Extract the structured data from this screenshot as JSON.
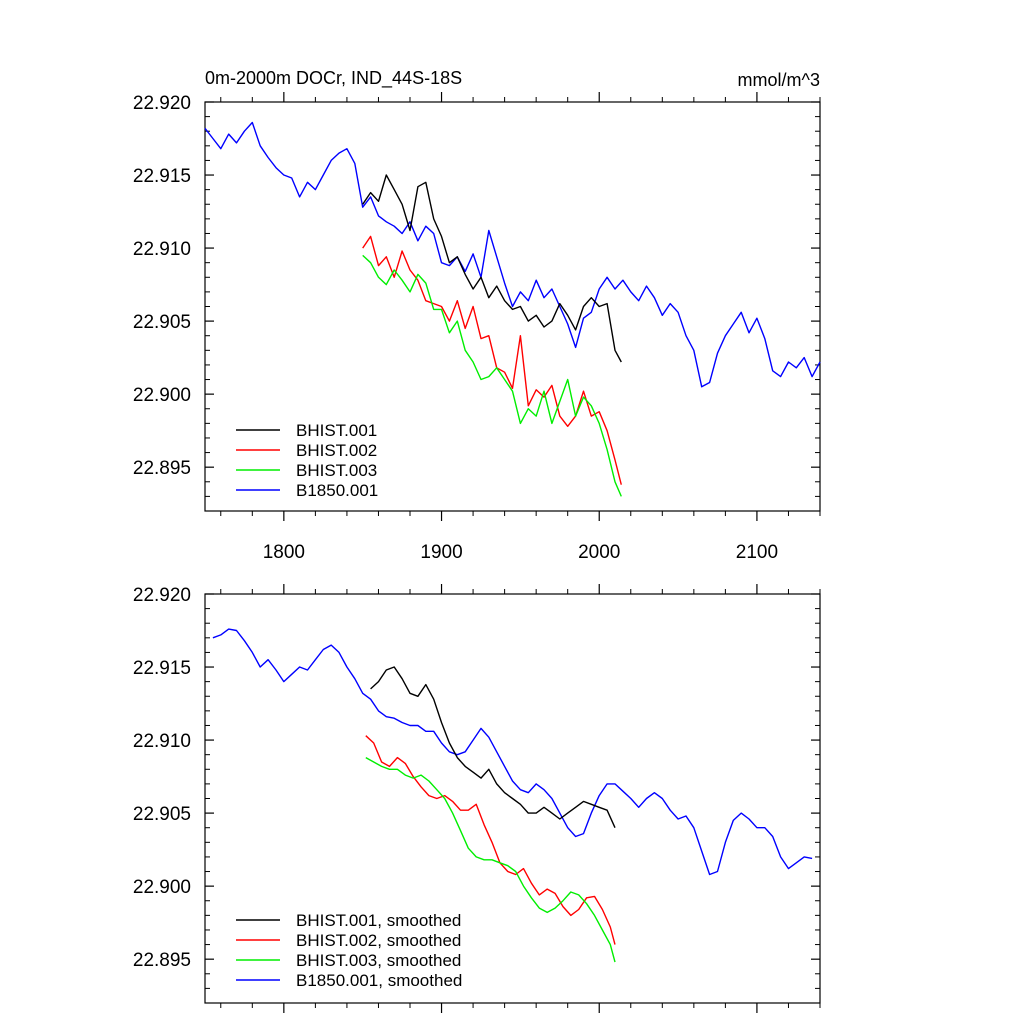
{
  "chart_data": [
    {
      "type": "line",
      "title": "0m-2000m DOCr, IND_44S-18S",
      "units": "mmol/m^3",
      "xlim": [
        1750,
        2140
      ],
      "ylim": [
        22.892,
        22.92
      ],
      "xticks": [
        1800,
        1900,
        2000,
        2100
      ],
      "xtick_labels": [
        "1800",
        "1900",
        "2000",
        "2100"
      ],
      "yticks": [
        22.895,
        22.9,
        22.905,
        22.91,
        22.915,
        22.92
      ],
      "ytick_labels": [
        "22.895",
        "22.900",
        "22.905",
        "22.910",
        "22.915",
        "22.920"
      ],
      "legend_position": "bottom-left",
      "series": [
        {
          "name": "BHIST.001",
          "color": "#000000",
          "x": [
            1850,
            1855,
            1860,
            1865,
            1870,
            1875,
            1880,
            1885,
            1890,
            1895,
            1900,
            1905,
            1910,
            1915,
            1920,
            1925,
            1930,
            1935,
            1940,
            1945,
            1950,
            1955,
            1960,
            1965,
            1970,
            1975,
            1980,
            1985,
            1990,
            1995,
            2000,
            2005,
            2010,
            2014
          ],
          "y": [
            22.913,
            22.9138,
            22.9132,
            22.915,
            22.914,
            22.913,
            22.9112,
            22.9142,
            22.9145,
            22.912,
            22.9108,
            22.909,
            22.9094,
            22.9082,
            22.9072,
            22.908,
            22.9066,
            22.9074,
            22.9064,
            22.9058,
            22.906,
            22.905,
            22.9054,
            22.9046,
            22.905,
            22.9062,
            22.9054,
            22.9044,
            22.906,
            22.9066,
            22.906,
            22.9062,
            22.903,
            22.9022
          ]
        },
        {
          "name": "BHIST.002",
          "color": "#ff0000",
          "x": [
            1850,
            1855,
            1860,
            1865,
            1870,
            1875,
            1880,
            1885,
            1890,
            1895,
            1900,
            1905,
            1910,
            1915,
            1920,
            1925,
            1930,
            1935,
            1940,
            1945,
            1950,
            1955,
            1960,
            1965,
            1970,
            1975,
            1980,
            1985,
            1990,
            1995,
            2000,
            2005,
            2010,
            2014
          ],
          "y": [
            22.91,
            22.9108,
            22.9088,
            22.9094,
            22.908,
            22.9098,
            22.9085,
            22.9078,
            22.9064,
            22.9062,
            22.906,
            22.905,
            22.9064,
            22.9045,
            22.906,
            22.9038,
            22.904,
            22.9018,
            22.9015,
            22.9004,
            22.904,
            22.8992,
            22.9003,
            22.8998,
            22.9006,
            22.8985,
            22.8978,
            22.8985,
            22.9002,
            22.8985,
            22.8988,
            22.8975,
            22.8955,
            22.8938
          ]
        },
        {
          "name": "BHIST.003",
          "color": "#00ee00",
          "x": [
            1850,
            1855,
            1860,
            1865,
            1870,
            1875,
            1880,
            1885,
            1890,
            1895,
            1900,
            1905,
            1910,
            1915,
            1920,
            1925,
            1930,
            1935,
            1940,
            1945,
            1950,
            1955,
            1960,
            1965,
            1970,
            1975,
            1980,
            1985,
            1990,
            1995,
            2000,
            2005,
            2010,
            2014
          ],
          "y": [
            22.9095,
            22.909,
            22.908,
            22.9075,
            22.9085,
            22.9078,
            22.907,
            22.9082,
            22.9076,
            22.9058,
            22.9058,
            22.9042,
            22.905,
            22.903,
            22.9022,
            22.901,
            22.9012,
            22.9018,
            22.901,
            22.9002,
            22.898,
            22.899,
            22.8985,
            22.9002,
            22.898,
            22.8995,
            22.901,
            22.8985,
            22.8998,
            22.8992,
            22.898,
            22.8962,
            22.894,
            22.893
          ]
        },
        {
          "name": "B1850.001",
          "color": "#0000ff",
          "x": [
            1750,
            1755,
            1760,
            1765,
            1770,
            1775,
            1780,
            1785,
            1790,
            1795,
            1800,
            1805,
            1810,
            1815,
            1820,
            1825,
            1830,
            1835,
            1840,
            1845,
            1850,
            1855,
            1860,
            1865,
            1870,
            1875,
            1880,
            1885,
            1890,
            1895,
            1900,
            1905,
            1910,
            1915,
            1920,
            1925,
            1930,
            1935,
            1940,
            1945,
            1950,
            1955,
            1960,
            1965,
            1970,
            1975,
            1980,
            1985,
            1990,
            1995,
            2000,
            2005,
            2010,
            2015,
            2020,
            2025,
            2030,
            2035,
            2040,
            2045,
            2050,
            2055,
            2060,
            2065,
            2070,
            2075,
            2080,
            2085,
            2090,
            2095,
            2100,
            2105,
            2110,
            2115,
            2120,
            2125,
            2130,
            2135,
            2140
          ],
          "y": [
            22.9182,
            22.9175,
            22.9168,
            22.9178,
            22.9172,
            22.918,
            22.9186,
            22.917,
            22.9162,
            22.9155,
            22.915,
            22.9148,
            22.9135,
            22.9145,
            22.914,
            22.915,
            22.916,
            22.9165,
            22.9168,
            22.9158,
            22.9128,
            22.9135,
            22.9122,
            22.9118,
            22.9115,
            22.911,
            22.9118,
            22.9105,
            22.9115,
            22.911,
            22.909,
            22.9088,
            22.9094,
            22.9084,
            22.9096,
            22.908,
            22.9112,
            22.9094,
            22.9076,
            22.906,
            22.907,
            22.9064,
            22.9078,
            22.9066,
            22.9072,
            22.906,
            22.9048,
            22.9032,
            22.9052,
            22.9056,
            22.9072,
            22.908,
            22.9072,
            22.9078,
            22.907,
            22.9064,
            22.9074,
            22.9066,
            22.9054,
            22.9062,
            22.9056,
            22.904,
            22.903,
            22.9005,
            22.9008,
            22.9028,
            22.904,
            22.9048,
            22.9056,
            22.9042,
            22.9052,
            22.9038,
            22.9016,
            22.9012,
            22.9022,
            22.9018,
            22.9025,
            22.9012,
            22.9022
          ]
        }
      ]
    },
    {
      "type": "line",
      "xlim": [
        1750,
        2140
      ],
      "ylim": [
        22.892,
        22.92
      ],
      "xticks": [
        1800,
        1900,
        2000,
        2100
      ],
      "yticks": [
        22.895,
        22.9,
        22.905,
        22.91,
        22.915,
        22.92
      ],
      "ytick_labels": [
        "22.895",
        "22.900",
        "22.905",
        "22.910",
        "22.915",
        "22.920"
      ],
      "legend_position": "bottom-left",
      "series": [
        {
          "name": "BHIST.001, smoothed",
          "color": "#000000",
          "x": [
            1855,
            1860,
            1865,
            1870,
            1875,
            1880,
            1885,
            1890,
            1895,
            1900,
            1905,
            1910,
            1915,
            1920,
            1925,
            1930,
            1935,
            1940,
            1945,
            1950,
            1955,
            1960,
            1965,
            1970,
            1975,
            1980,
            1985,
            1990,
            1995,
            2000,
            2005,
            2010
          ],
          "y": [
            22.9135,
            22.914,
            22.9148,
            22.915,
            22.9142,
            22.9132,
            22.913,
            22.9138,
            22.9128,
            22.9112,
            22.9098,
            22.9088,
            22.9082,
            22.9078,
            22.9074,
            22.908,
            22.907,
            22.9064,
            22.906,
            22.9056,
            22.905,
            22.905,
            22.9054,
            22.905,
            22.9046,
            22.905,
            22.9054,
            22.9058,
            22.9056,
            22.9054,
            22.9052,
            22.904
          ]
        },
        {
          "name": "BHIST.002, smoothed",
          "color": "#ff0000",
          "x": [
            1852,
            1857,
            1862,
            1867,
            1872,
            1877,
            1882,
            1887,
            1892,
            1897,
            1902,
            1907,
            1912,
            1917,
            1922,
            1927,
            1932,
            1937,
            1942,
            1947,
            1952,
            1957,
            1962,
            1967,
            1972,
            1977,
            1982,
            1987,
            1992,
            1997,
            2002,
            2007,
            2010
          ],
          "y": [
            22.9103,
            22.9098,
            22.9085,
            22.9082,
            22.9088,
            22.9084,
            22.9075,
            22.9068,
            22.9062,
            22.906,
            22.9062,
            22.9058,
            22.9052,
            22.9052,
            22.9056,
            22.9042,
            22.903,
            22.9016,
            22.901,
            22.9008,
            22.9012,
            22.9002,
            22.8994,
            22.8998,
            22.8995,
            22.8986,
            22.898,
            22.8984,
            22.8992,
            22.8993,
            22.8984,
            22.8972,
            22.896
          ]
        },
        {
          "name": "BHIST.003, smoothed",
          "color": "#00ee00",
          "x": [
            1852,
            1857,
            1862,
            1867,
            1872,
            1877,
            1882,
            1887,
            1892,
            1897,
            1902,
            1907,
            1912,
            1917,
            1922,
            1927,
            1932,
            1937,
            1942,
            1947,
            1952,
            1957,
            1962,
            1967,
            1972,
            1977,
            1982,
            1987,
            1992,
            1997,
            2002,
            2007,
            2010
          ],
          "y": [
            22.9088,
            22.9085,
            22.9082,
            22.908,
            22.908,
            22.9076,
            22.9074,
            22.9076,
            22.9072,
            22.9066,
            22.906,
            22.905,
            22.9038,
            22.9026,
            22.902,
            22.9018,
            22.9018,
            22.9016,
            22.9014,
            22.901,
            22.9,
            22.8992,
            22.8985,
            22.8982,
            22.8985,
            22.899,
            22.8996,
            22.8994,
            22.8988,
            22.898,
            22.897,
            22.896,
            22.8948
          ]
        },
        {
          "name": "B1850.001, smoothed",
          "color": "#0000ff",
          "x": [
            1755,
            1760,
            1765,
            1770,
            1775,
            1780,
            1785,
            1790,
            1795,
            1800,
            1805,
            1810,
            1815,
            1820,
            1825,
            1830,
            1835,
            1840,
            1845,
            1850,
            1855,
            1860,
            1865,
            1870,
            1875,
            1880,
            1885,
            1890,
            1895,
            1900,
            1905,
            1910,
            1915,
            1920,
            1925,
            1930,
            1935,
            1940,
            1945,
            1950,
            1955,
            1960,
            1965,
            1970,
            1975,
            1980,
            1985,
            1990,
            1995,
            2000,
            2005,
            2010,
            2015,
            2020,
            2025,
            2030,
            2035,
            2040,
            2045,
            2050,
            2055,
            2060,
            2065,
            2070,
            2075,
            2080,
            2085,
            2090,
            2095,
            2100,
            2105,
            2110,
            2115,
            2120,
            2125,
            2130,
            2135
          ],
          "y": [
            22.917,
            22.9172,
            22.9176,
            22.9175,
            22.9168,
            22.916,
            22.915,
            22.9155,
            22.9148,
            22.914,
            22.9145,
            22.915,
            22.9148,
            22.9155,
            22.9162,
            22.9165,
            22.916,
            22.915,
            22.9142,
            22.9132,
            22.9128,
            22.912,
            22.9116,
            22.9115,
            22.9112,
            22.911,
            22.911,
            22.9106,
            22.9106,
            22.9098,
            22.9092,
            22.909,
            22.9092,
            22.91,
            22.9108,
            22.9102,
            22.9092,
            22.9082,
            22.9072,
            22.9066,
            22.9064,
            22.907,
            22.9066,
            22.906,
            22.905,
            22.904,
            22.9034,
            22.9036,
            22.905,
            22.9062,
            22.907,
            22.907,
            22.9065,
            22.906,
            22.9054,
            22.906,
            22.9064,
            22.906,
            22.9052,
            22.9046,
            22.9048,
            22.904,
            22.9024,
            22.9008,
            22.901,
            22.903,
            22.9045,
            22.905,
            22.9046,
            22.904,
            22.904,
            22.9034,
            22.902,
            22.9012,
            22.9016,
            22.902,
            22.9019
          ]
        }
      ]
    }
  ]
}
